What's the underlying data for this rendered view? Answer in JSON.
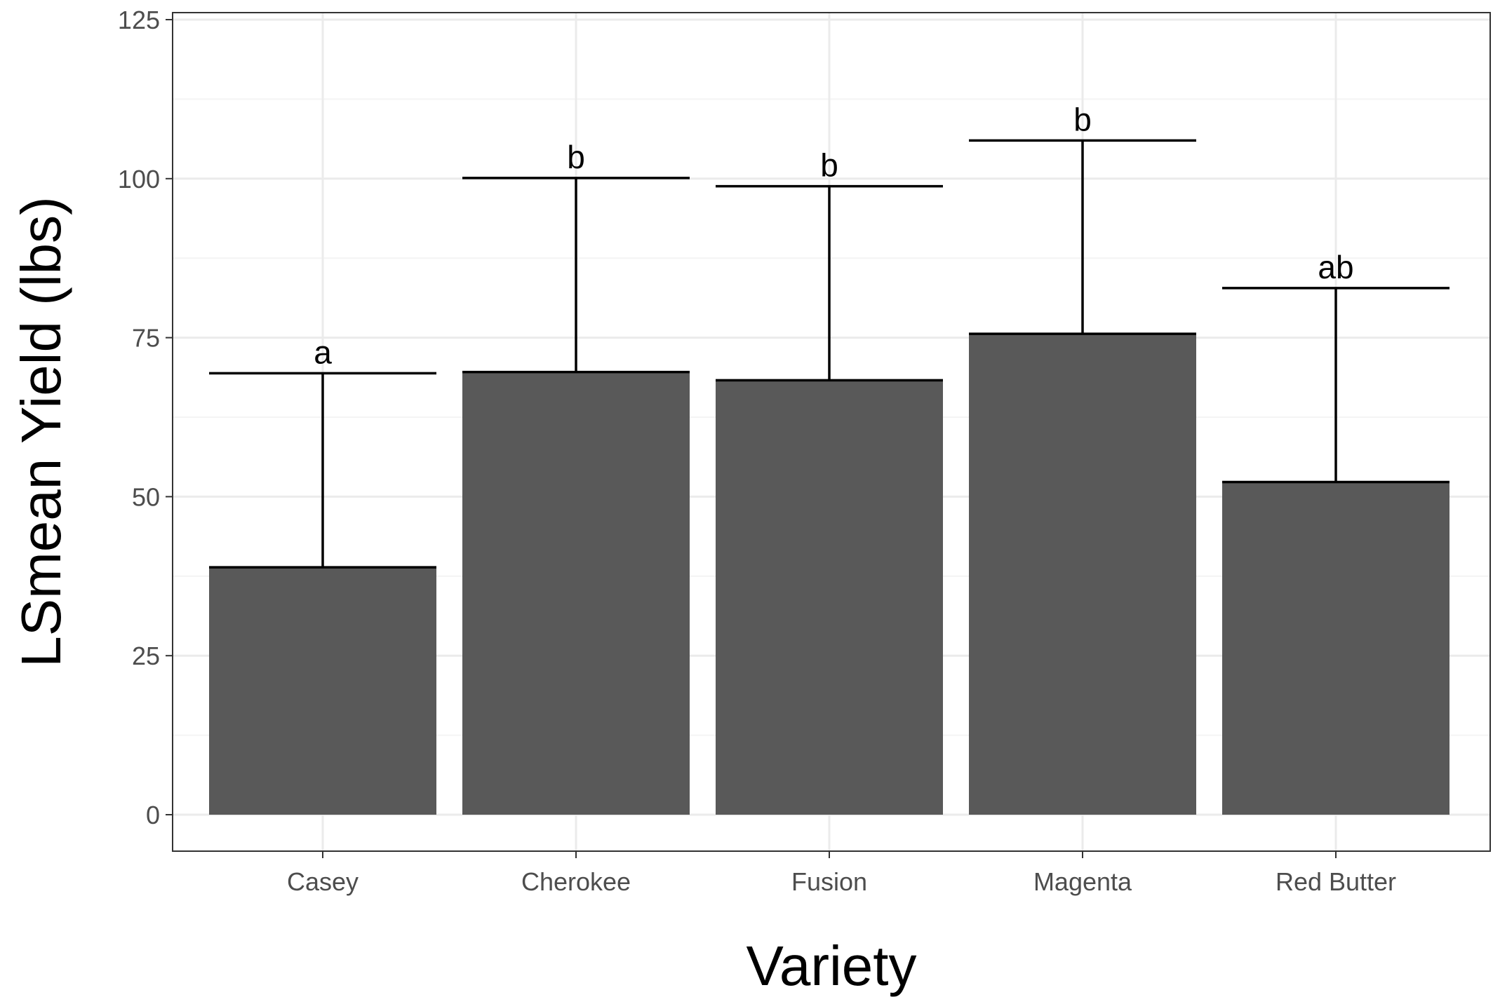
{
  "chart_data": {
    "type": "bar",
    "title": "",
    "xlabel": "Variety",
    "ylabel": "LSmean Yield (lbs)",
    "categories": [
      "Casey",
      "Cherokee",
      "Fusion",
      "Magenta",
      "Red Butter"
    ],
    "values": [
      38.9,
      69.6,
      68.3,
      75.6,
      52.3
    ],
    "error_upper": [
      69.4,
      100.1,
      98.8,
      106.0,
      82.8
    ],
    "group_letters": [
      "a",
      "b",
      "b",
      "b",
      "ab"
    ],
    "ylim": [
      0,
      125
    ],
    "yticks": [
      0,
      25,
      50,
      75,
      100,
      125
    ],
    "ytick_labels": [
      "0",
      "25",
      "50",
      "75",
      "100",
      "125"
    ],
    "grid": true,
    "legend": "none",
    "bar_color": "#595959",
    "panel_background": "#ffffff",
    "grid_major_color": "#ebebeb",
    "grid_minor_color": "#f4f4f4",
    "frame_color": "#333333",
    "error_bar_color": "#000000"
  }
}
